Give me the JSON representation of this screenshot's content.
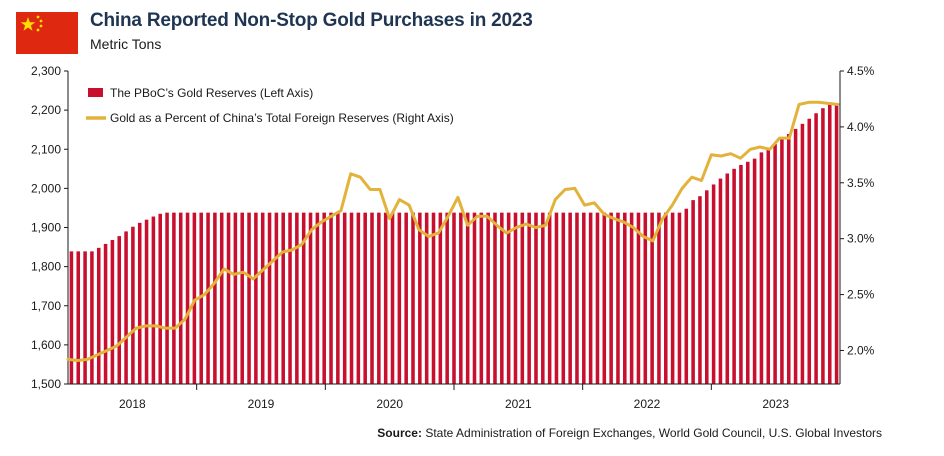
{
  "header": {
    "title": "China Reported Non-Stop Gold Purchases in 2023",
    "subtitle": "Metric Tons",
    "flag_icon": "china-flag-icon"
  },
  "source": {
    "label": "Source:",
    "text": "State Administration of Foreign Exchanges, World Gold Council, U.S. Global Investors"
  },
  "colors": {
    "bars": "#c8102e",
    "line": "#e2b23a",
    "flag_red": "#de2910",
    "flag_star": "#ffde00"
  },
  "chart_data": {
    "type": "bar",
    "title": "China Reported Non-Stop Gold Purchases in 2023",
    "ylabel": "Metric Tons",
    "legend_position": "top-left",
    "grid": false,
    "ylim": [
      1500,
      2300
    ],
    "y_ticks": [
      "1,500",
      "1,600",
      "1,700",
      "1,800",
      "1,900",
      "2,000",
      "2,100",
      "2,200",
      "2,300"
    ],
    "y2lim": [
      1.7,
      4.5
    ],
    "y2_ticks": [
      "2.0%",
      "2.5%",
      "3.0%",
      "3.5%",
      "4.0%",
      "4.5%"
    ],
    "year_labels": [
      "2018",
      "2019",
      "2020",
      "2021",
      "2022",
      "2023"
    ],
    "series": [
      {
        "name": "The PBoC’s Gold Reserves (Left Axis)",
        "type": "bar",
        "axis": "left",
        "values": [
          1839,
          1839,
          1839,
          1839,
          1848,
          1858,
          1868,
          1878,
          1890,
          1902,
          1912,
          1920,
          1928,
          1935,
          1938,
          1938,
          1938,
          1938,
          1938,
          1938,
          1938,
          1938,
          1938,
          1938,
          1938,
          1938,
          1938,
          1938,
          1938,
          1938,
          1938,
          1938,
          1938,
          1938,
          1938,
          1938,
          1938,
          1938,
          1938,
          1938,
          1938,
          1938,
          1938,
          1938,
          1938,
          1938,
          1938,
          1938,
          1938,
          1938,
          1938,
          1938,
          1938,
          1938,
          1938,
          1938,
          1938,
          1938,
          1938,
          1938,
          1938,
          1938,
          1938,
          1938,
          1938,
          1938,
          1938,
          1938,
          1938,
          1938,
          1938,
          1938,
          1938,
          1938,
          1938,
          1938,
          1938,
          1938,
          1938,
          1938,
          1938,
          1938,
          1938,
          1938,
          1938,
          1938,
          1938,
          1938,
          1938,
          1938,
          1948,
          1970,
          1980,
          1995,
          2010,
          2025,
          2038,
          2050,
          2060,
          2068,
          2076,
          2092,
          2103,
          2113,
          2126,
          2139,
          2152,
          2165,
          2178,
          2192,
          2205,
          2215,
          2215
        ]
      },
      {
        "name": "Gold as a Percent of China’s Total Foreign Reserves (Right Axis)",
        "type": "line",
        "axis": "right",
        "values": [
          1.92,
          1.91,
          1.92,
          1.96,
          2.0,
          2.04,
          2.12,
          2.2,
          2.22,
          2.22,
          2.2,
          2.2,
          2.28,
          2.45,
          2.5,
          2.6,
          2.73,
          2.68,
          2.7,
          2.64,
          2.72,
          2.8,
          2.88,
          2.9,
          2.95,
          3.08,
          3.15,
          3.2,
          3.25,
          3.58,
          3.55,
          3.44,
          3.44,
          3.18,
          3.35,
          3.3,
          3.08,
          3.02,
          3.05,
          3.2,
          3.37,
          3.12,
          3.2,
          3.2,
          3.12,
          3.05,
          3.1,
          3.13,
          3.1,
          3.12,
          3.35,
          3.44,
          3.45,
          3.3,
          3.32,
          3.22,
          3.18,
          3.15,
          3.1,
          3.02,
          2.98,
          3.18,
          3.3,
          3.45,
          3.55,
          3.52,
          3.75,
          3.74,
          3.76,
          3.72,
          3.8,
          3.82,
          3.8,
          3.9,
          3.9,
          4.2,
          4.22,
          4.22,
          4.21,
          4.2
        ]
      }
    ]
  }
}
